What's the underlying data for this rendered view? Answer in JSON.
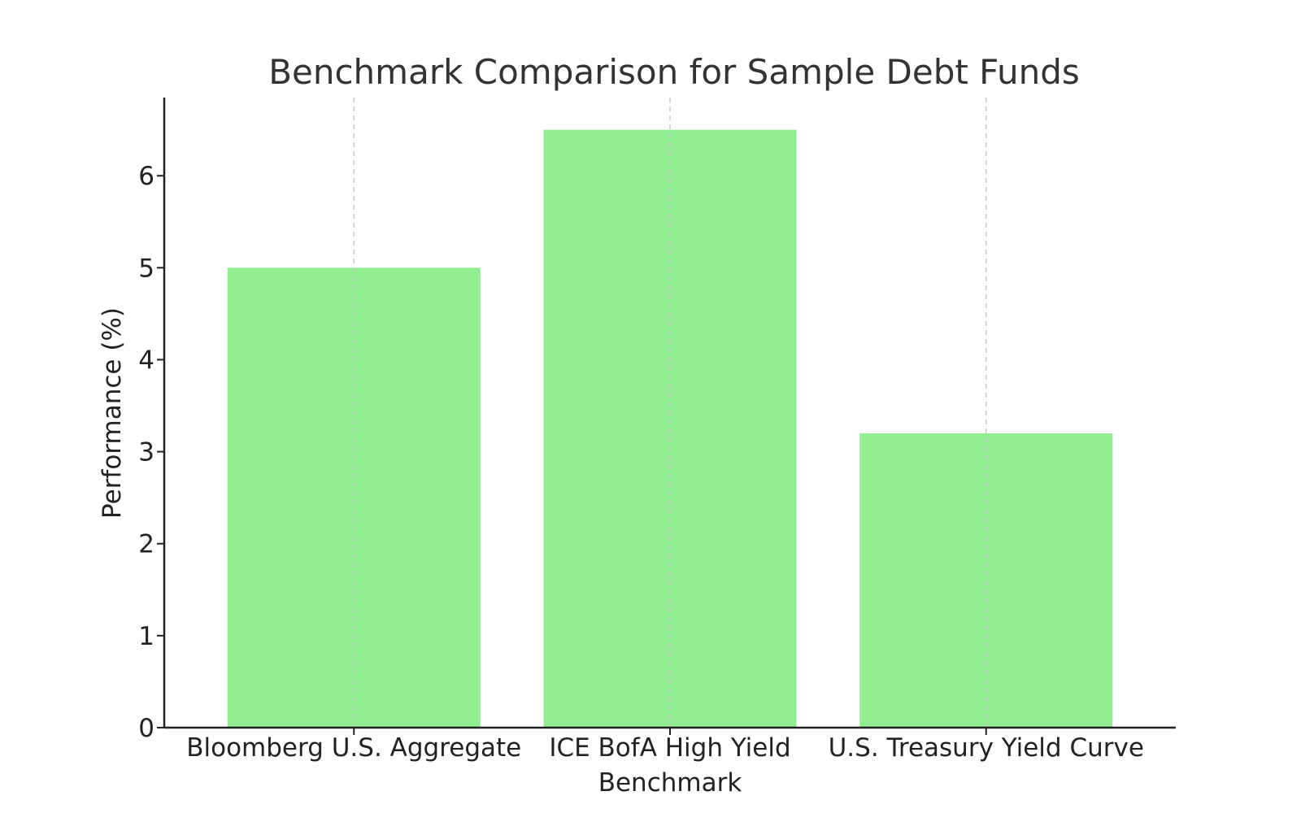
{
  "chart_data": {
    "type": "bar",
    "title": "Benchmark Comparison for Sample Debt Funds",
    "xlabel": "Benchmark",
    "ylabel": "Performance (%)",
    "categories": [
      "Bloomberg U.S. Aggregate",
      "ICE BofA High Yield",
      "U.S. Treasury Yield Curve"
    ],
    "values": [
      5.0,
      6.5,
      3.2
    ],
    "ylim": [
      0,
      6.85
    ],
    "yticks": [
      0,
      1,
      2,
      3,
      4,
      5,
      6
    ],
    "grid": "vertical dashed at categories",
    "bar_color": "#90ee90"
  }
}
